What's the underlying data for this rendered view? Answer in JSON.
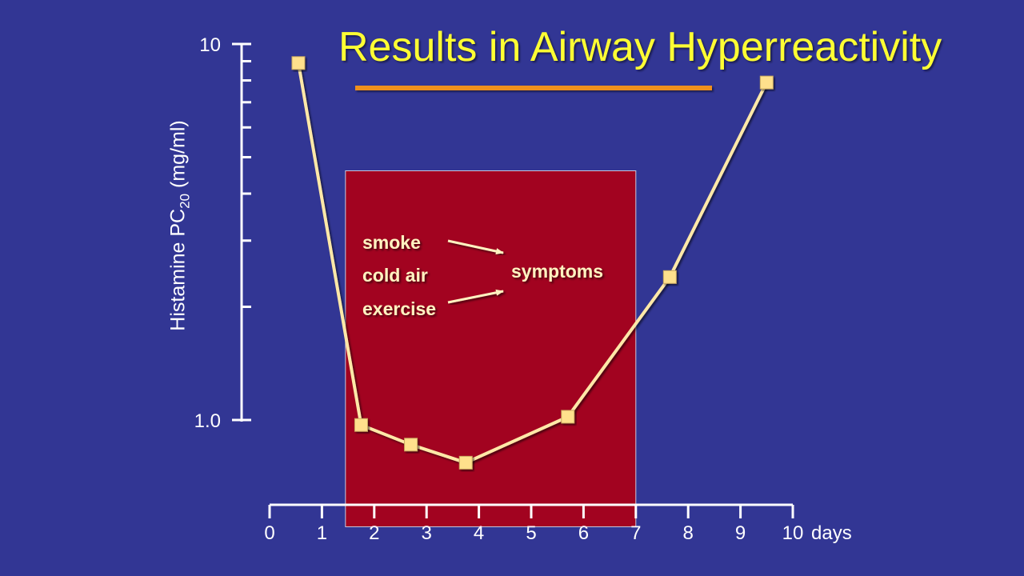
{
  "slide": {
    "title": "Results in Airway Hyperreactivity"
  },
  "colors": {
    "background": "#323694",
    "title": "#ffff33",
    "underline": "#f0901c",
    "axis": "#ffffff",
    "highlight_box": "#a20320",
    "line": "#ffe8a8",
    "marker": "#ffe08c",
    "callout_text": "#fff2c0"
  },
  "chart_data": {
    "type": "line",
    "title": "Results in Airway Hyperreactivity",
    "xlabel": "days",
    "ylabel": "Histamine PC",
    "ylabel_subscript": "20",
    "ylabel_unit": " (mg/ml)",
    "y_scale": "log",
    "xlim": [
      0,
      10
    ],
    "ylim": [
      0.51,
      10
    ],
    "x_ticks": [
      0,
      1,
      2,
      3,
      4,
      5,
      6,
      7,
      8,
      9,
      10
    ],
    "x_tick_labels": [
      "0",
      "1",
      "2",
      "3",
      "4",
      "5",
      "6",
      "7",
      "8",
      "9",
      "10"
    ],
    "x_unit_label": "days",
    "y_ticks": [
      1,
      2,
      3,
      4,
      5,
      6,
      7,
      8,
      9,
      10
    ],
    "y_tick_labels": [
      {
        "value": 1,
        "label": "1.0"
      },
      {
        "value": 10,
        "label": "10"
      }
    ],
    "series": [
      {
        "x": [
          0.55,
          1.75,
          2.7,
          3.75,
          5.7,
          7.65,
          9.5
        ],
        "y": [
          8.9,
          0.97,
          0.86,
          0.77,
          1.02,
          2.4,
          7.9
        ]
      }
    ],
    "highlight_region": {
      "x_start": 1.45,
      "x_end": 7.0,
      "y_bottom": 0.52,
      "y_top": 4.6
    },
    "annotation": {
      "triggers": [
        "smoke",
        "cold air",
        "exercise"
      ],
      "result": "symptoms"
    }
  }
}
